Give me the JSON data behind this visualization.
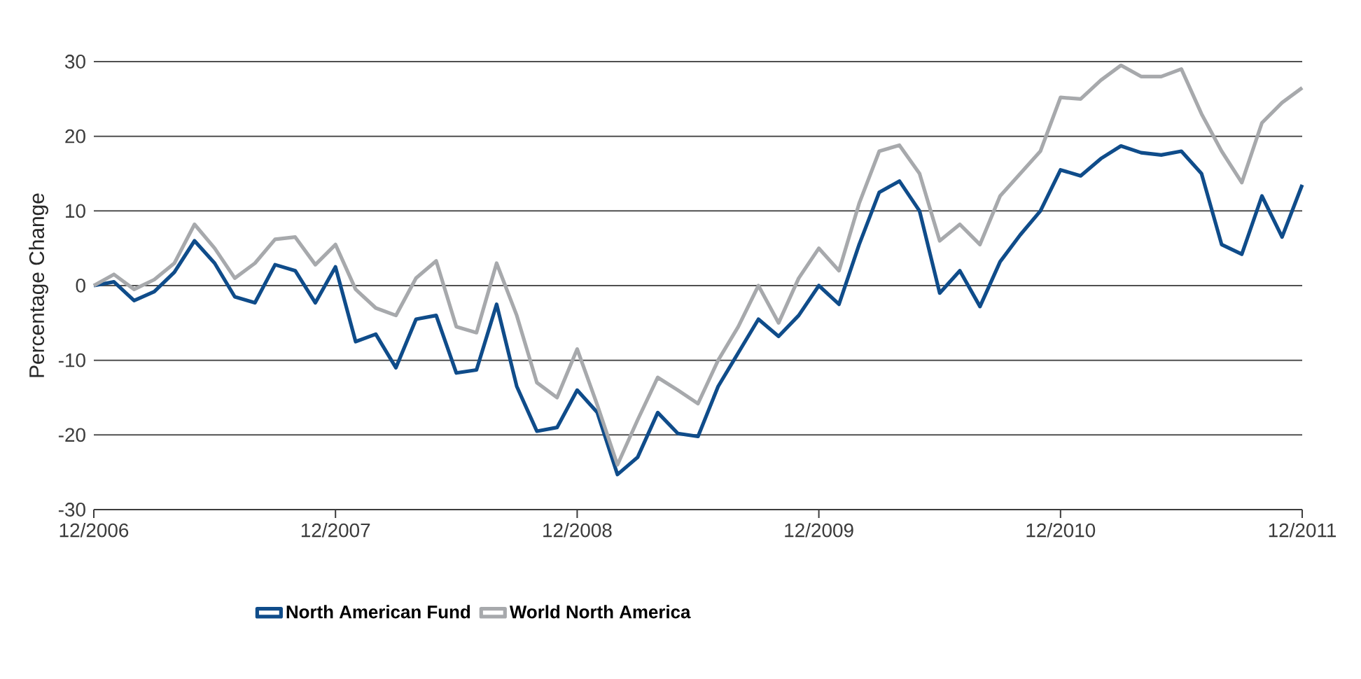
{
  "chart_data": {
    "type": "line",
    "x": [
      "2006-12",
      "2007-01",
      "2007-02",
      "2007-03",
      "2007-04",
      "2007-05",
      "2007-06",
      "2007-07",
      "2007-08",
      "2007-09",
      "2007-10",
      "2007-11",
      "2007-12",
      "2008-01",
      "2008-02",
      "2008-03",
      "2008-04",
      "2008-05",
      "2008-06",
      "2008-07",
      "2008-08",
      "2008-09",
      "2008-10",
      "2008-11",
      "2008-12",
      "2009-01",
      "2009-02",
      "2009-03",
      "2009-04",
      "2009-05",
      "2009-06",
      "2009-07",
      "2009-08",
      "2009-09",
      "2009-10",
      "2009-11",
      "2009-12",
      "2010-01",
      "2010-02",
      "2010-03",
      "2010-04",
      "2010-05",
      "2010-06",
      "2010-07",
      "2010-08",
      "2010-09",
      "2010-10",
      "2010-11",
      "2010-12",
      "2011-01",
      "2011-02",
      "2011-03",
      "2011-04",
      "2011-05",
      "2011-06",
      "2011-07",
      "2011-08",
      "2011-09",
      "2011-10",
      "2011-11",
      "2011-12"
    ],
    "series": [
      {
        "name": "North American Fund",
        "color": "#0f4c8a",
        "values": [
          0,
          0.5,
          -2,
          -0.8,
          1.8,
          6,
          3,
          -1.5,
          -2.3,
          2.8,
          2,
          -2.3,
          2.5,
          -7.5,
          -6.5,
          -11,
          -4.5,
          -4,
          -11.7,
          -11.3,
          -2.5,
          -13.5,
          -19.5,
          -19,
          -14,
          -17,
          -25.3,
          -23,
          -17,
          -19.8,
          -20.2,
          -13.5,
          -9,
          -4.5,
          -6.8,
          -4,
          0,
          -2.5,
          5.5,
          12.5,
          14,
          10,
          -1,
          2,
          -2.8,
          3.2,
          6.8,
          10,
          15.5,
          14.7,
          17,
          18.7,
          17.8,
          17.5,
          18,
          15,
          5.5,
          4.2,
          12,
          6.5,
          13.5
        ]
      },
      {
        "name": "World North America",
        "color": "#a7a9ac",
        "values": [
          0,
          1.5,
          -0.5,
          0.8,
          3,
          8.2,
          5,
          1,
          3,
          6.2,
          6.5,
          2.8,
          5.5,
          -0.5,
          -3,
          -4,
          1,
          3.3,
          -5.5,
          -6.3,
          3,
          -4,
          -13,
          -15,
          -8.5,
          -16,
          -24,
          -18,
          -12.3,
          -14,
          -15.8,
          -10,
          -5.5,
          0,
          -5,
          1,
          5,
          2,
          11,
          18,
          18.8,
          15,
          6,
          8.2,
          5.5,
          12,
          15,
          18,
          25.2,
          25,
          27.5,
          29.5,
          28,
          28,
          29,
          23,
          18,
          13.8,
          21.8,
          24.5,
          26.5
        ]
      }
    ],
    "ylabel": "Percentage Change",
    "xlim": [
      "2006-12",
      "2011-12"
    ],
    "xticks": [
      {
        "value": "2006-12",
        "label": "12/2006"
      },
      {
        "value": "2007-12",
        "label": "12/2007"
      },
      {
        "value": "2008-12",
        "label": "12/2008"
      },
      {
        "value": "2009-12",
        "label": "12/2009"
      },
      {
        "value": "2010-12",
        "label": "12/2010"
      },
      {
        "value": "2011-12",
        "label": "12/2011"
      }
    ],
    "ylim": [
      -30,
      30
    ],
    "yticks": [
      -30,
      -20,
      -10,
      0,
      10,
      20,
      30
    ],
    "grid": "y",
    "legend": "bottom",
    "marker": "none",
    "line_style": "solid"
  }
}
